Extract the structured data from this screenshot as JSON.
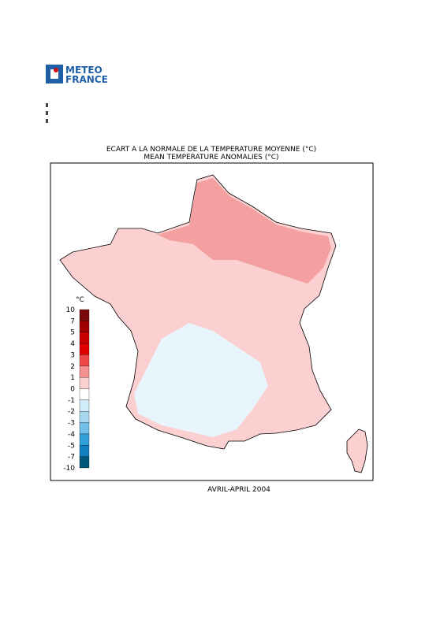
{
  "header": {
    "logo": [
      "METEO",
      "FRANCE"
    ]
  },
  "title": [
    "ECART A LA NORMALE DE LA TEMPERATURE MOYENNE (°C)",
    "MEAN TEMPERATURE ANOMALIES (°C)"
  ],
  "legend": {
    "unit": "°C",
    "labels": [
      "10",
      "7",
      "5",
      "4",
      "3",
      "2",
      "1",
      "0",
      "-1",
      "-2",
      "-3",
      "-4",
      "-5",
      "-7",
      "-10"
    ],
    "colors": [
      "#7a0a0a",
      "#a00000",
      "#c80000",
      "#e00000",
      "#f04848",
      "#f49090",
      "#fcd0d0",
      "#ffffff",
      "#d0ecf8",
      "#a8d8f0",
      "#70c0e8",
      "#30a0d8",
      "#1080c0",
      "#005878"
    ]
  },
  "date": "AVRIL-APRIL 2004"
}
